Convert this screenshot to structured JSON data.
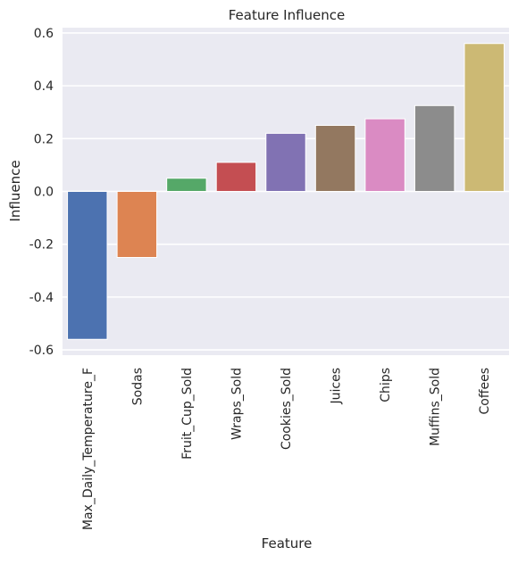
{
  "chart_data": {
    "type": "bar",
    "title": "Feature Influence",
    "xlabel": "Feature",
    "ylabel": "Influence",
    "categories": [
      "Max_Daily_Temperature_F",
      "Sodas",
      "Fruit_Cup_Sold",
      "Wraps_Sold",
      "Cookies_Sold",
      "Juices",
      "Chips",
      "Muffins_Sold",
      "Coffees"
    ],
    "values": [
      -0.56,
      -0.25,
      0.05,
      0.11,
      0.22,
      0.25,
      0.275,
      0.325,
      0.56
    ],
    "colors": [
      "#4c72b0",
      "#dd8452",
      "#55a868",
      "#c44e52",
      "#8172b3",
      "#937860",
      "#da8bc3",
      "#8c8c8c",
      "#ccb974"
    ],
    "yticks": [
      "-0.6",
      "-0.4",
      "-0.2",
      "0.0",
      "0.2",
      "0.4",
      "0.6"
    ],
    "ylim": [
      -0.62,
      0.62
    ],
    "grid": true,
    "background": "#eaeaf2",
    "gridline_color": "#ffffff",
    "legend": false
  }
}
